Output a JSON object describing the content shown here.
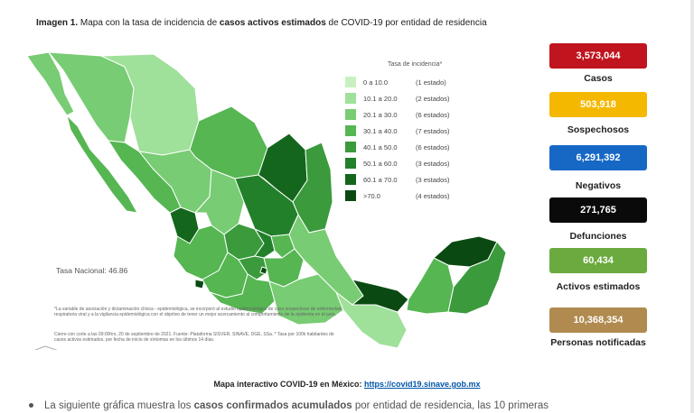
{
  "caption": {
    "prefix": "Imagen 1.",
    "part1": " Mapa con la tasa de incidencia de ",
    "bold": "casos activos estimados",
    "part2": " de COVID-19 por entidad de residencia"
  },
  "legend": {
    "title": "Tasa de incidencia*",
    "rows": [
      {
        "range": "0  a  10.0",
        "count": "(1 estado)",
        "color": "#c9f0c0"
      },
      {
        "range": "10.1  a  20.0",
        "count": "(2 estados)",
        "color": "#9fe09a"
      },
      {
        "range": "20.1  a  30.0",
        "count": "(6 estados)",
        "color": "#78cc73"
      },
      {
        "range": "30.1  a  40.0",
        "count": "(7 estados)",
        "color": "#55b652"
      },
      {
        "range": "40.1  a  50.0",
        "count": "(6 estados)",
        "color": "#3a9a3c"
      },
      {
        "range": "50.1  a  60.0",
        "count": "(3 estados)",
        "color": "#22802a"
      },
      {
        "range": "60.1  a  70.0",
        "count": "(3 estados)",
        "color": "#14661d"
      },
      {
        "range": ">70.0",
        "count": "(4 estados)",
        "color": "#0a4a12"
      }
    ]
  },
  "tasa_nacional": "Tasa Nacional: 46.86",
  "fineprint": "*La variable de asociación y dictaminación clínica - epidemiológica, se incorporó al estudio epidemiológico de caso sospechoso de enfermedad respiratoria viral y a la vigilancia epidemiológica con el objetivo de tener un mejor acercamiento al comportamiento de la epidemia en el país.",
  "fineprint2": "Cierre con corte a las 09:00hrs, 20 de septiembre de 2021. Fuente: Plataforma SISVER, SINAVE, DGE, SSa. * Tasa por 100k habitantes de casos activos estimados, por fecha de inicio de síntomas en los últimos 14 días.",
  "stats": [
    {
      "value": "3,573,044",
      "label": "Casos",
      "color": "#c0141e"
    },
    {
      "value": "503,918",
      "label": "Sospechosos",
      "color": "#f5b800"
    },
    {
      "value": "6,291,392",
      "label": "Negativos",
      "color": "#1668c4"
    },
    {
      "value": "271,765",
      "label": "Defunciones",
      "color": "#0a0a0a"
    },
    {
      "value": "60,434",
      "label": "Activos estimados",
      "color": "#6aaa3e"
    },
    {
      "value": "10,368,354",
      "label": "Personas notificadas",
      "color": "#b08a4e"
    }
  ],
  "footer": {
    "text": "Mapa interactivo COVID-19 en México: ",
    "link": "https://covid19.sinave.gob.mx"
  },
  "bullet": {
    "pre": "La siguiente gráfica muestra los ",
    "bold": "casos confirmados acumulados",
    "post": " por entidad de residencia, las 10 primeras"
  }
}
